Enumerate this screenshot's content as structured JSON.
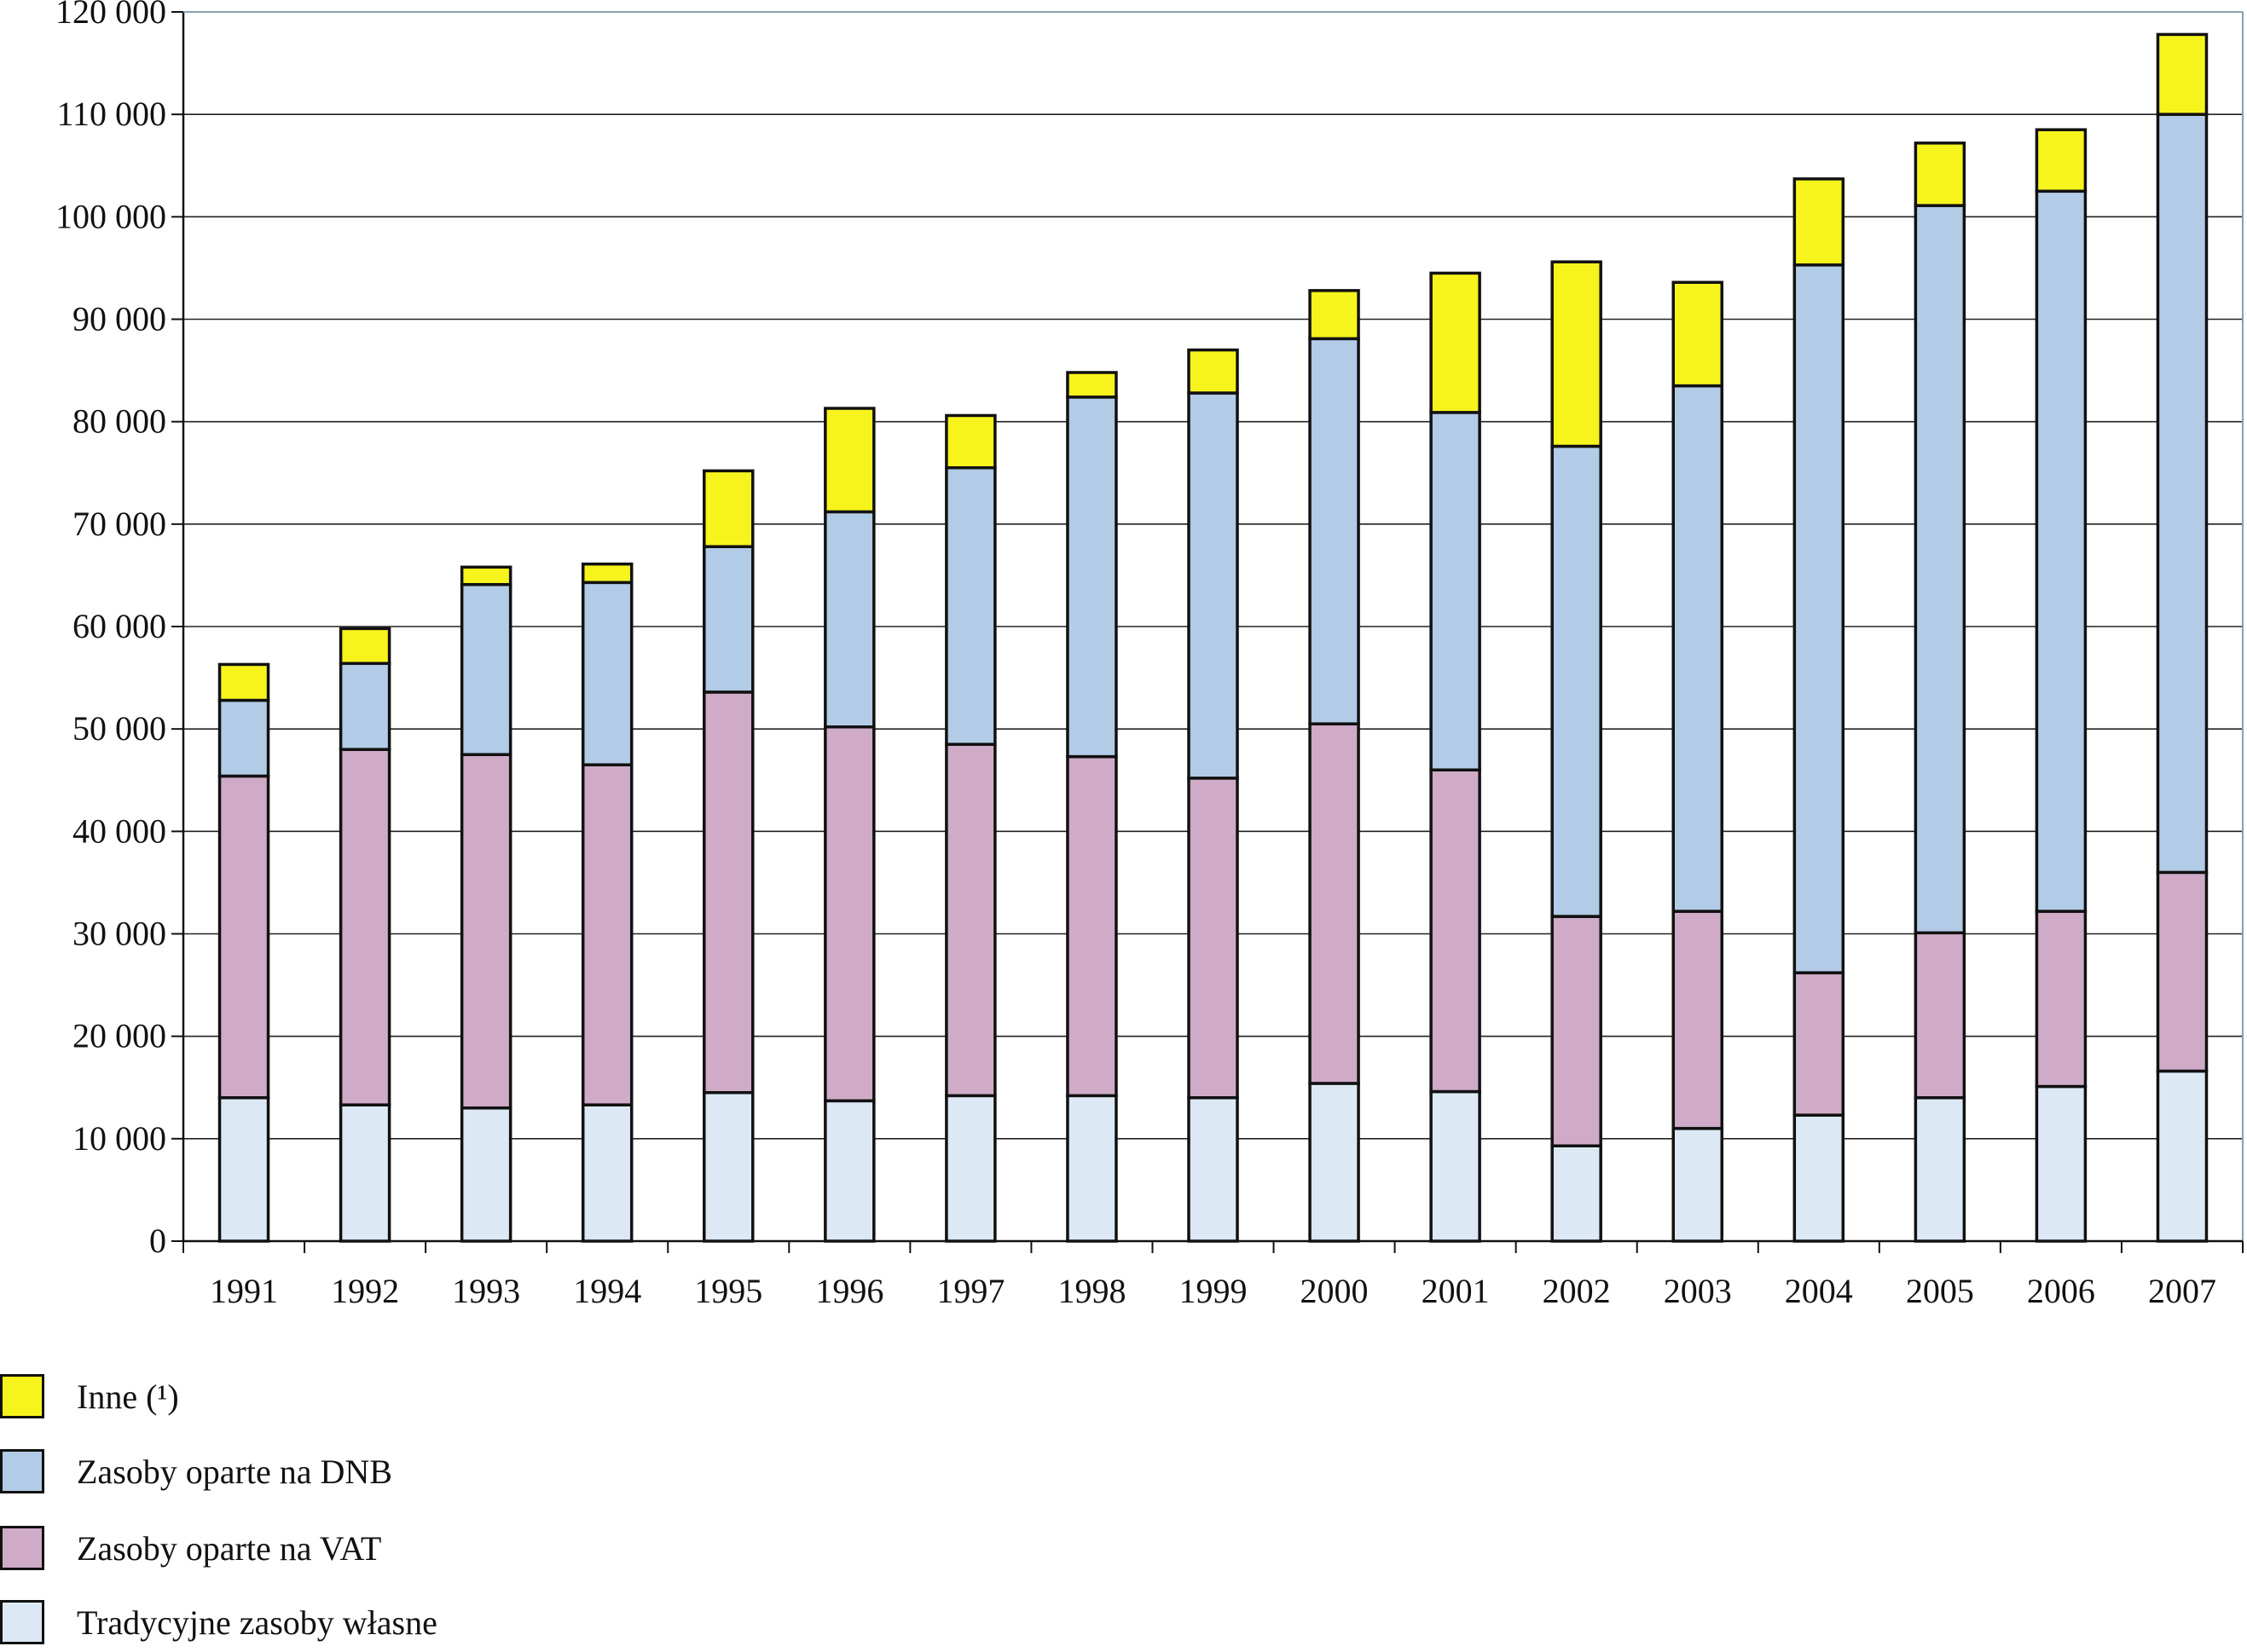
{
  "chart_data": {
    "type": "bar",
    "stacked": true,
    "title": "",
    "xlabel": "",
    "ylabel": "",
    "ylim": [
      0,
      120000
    ],
    "yticks": [
      0,
      10000,
      20000,
      30000,
      40000,
      50000,
      60000,
      70000,
      80000,
      90000,
      100000,
      110000,
      120000
    ],
    "ytick_labels": [
      "0",
      "10 000",
      "20 000",
      "30 000",
      "40 000",
      "50 000",
      "60 000",
      "70 000",
      "80 000",
      "90 000",
      "100 000",
      "110 000",
      "120 000"
    ],
    "grid": true,
    "legend_position": "bottom-left",
    "categories": [
      "1991",
      "1992",
      "1993",
      "1994",
      "1995",
      "1996",
      "1997",
      "1998",
      "1999",
      "2000",
      "2001",
      "2002",
      "2003",
      "2004",
      "2005",
      "2006",
      "2007"
    ],
    "series": [
      {
        "name": "Tradycyjne zasoby własne",
        "color": "#dce9f5",
        "values": [
          14000,
          13300,
          13000,
          13300,
          14500,
          13700,
          14200,
          14200,
          14000,
          15400,
          14600,
          9300,
          11000,
          12300,
          14000,
          15100,
          16600
        ]
      },
      {
        "name": "Zasoby oparte na VAT",
        "color": "#cfabc7",
        "values": [
          31400,
          34700,
          34500,
          33200,
          39100,
          36500,
          34300,
          33100,
          31200,
          35100,
          31400,
          22400,
          21200,
          13900,
          16100,
          17100,
          19400
        ]
      },
      {
        "name": "Zasoby oparte na DNB",
        "color": "#b2cbe7",
        "values": [
          7400,
          8400,
          16600,
          17800,
          14200,
          21000,
          27000,
          35100,
          37600,
          37600,
          34900,
          45900,
          51300,
          69100,
          71000,
          70300,
          74000
        ]
      },
      {
        "name": "Inne (¹)",
        "color": "#f7f41d",
        "values": [
          3500,
          3400,
          1700,
          1800,
          7400,
          10100,
          5100,
          2400,
          4200,
          4700,
          13600,
          18000,
          10100,
          8400,
          6100,
          6000,
          7800
        ]
      }
    ]
  },
  "legend": [
    {
      "label": "Inne (¹)",
      "color": "#f7f41d"
    },
    {
      "label": "Zasoby oparte na DNB",
      "color": "#b2cbe7"
    },
    {
      "label": "Zasoby oparte na VAT",
      "color": "#cfabc7"
    },
    {
      "label": "Tradycyjne zasoby własne",
      "color": "#dce9f5"
    }
  ]
}
